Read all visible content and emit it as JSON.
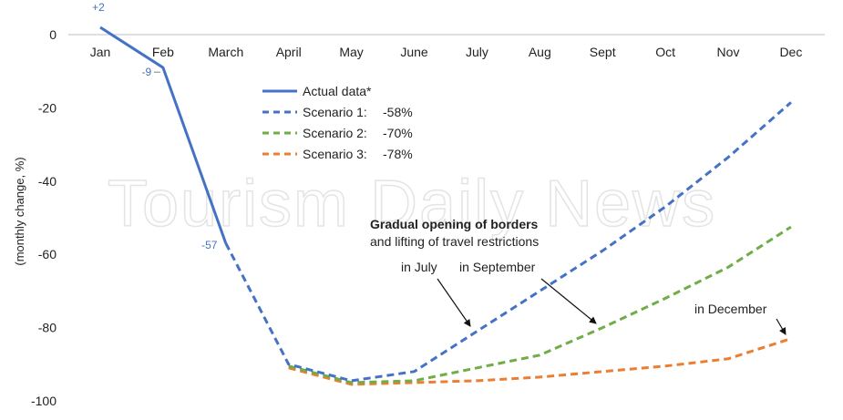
{
  "chart_data": {
    "type": "line",
    "categories": [
      "Jan",
      "Feb",
      "March",
      "April",
      "May",
      "June",
      "July",
      "Aug",
      "Sept",
      "Oct",
      "Nov",
      "Dec"
    ],
    "ylabel": "(monthly change, %)",
    "ylim": [
      -100,
      0
    ],
    "yticks": [
      0,
      -20,
      -40,
      -60,
      -80,
      -100
    ],
    "grid": false,
    "legend_position": "center-left",
    "series": [
      {
        "name": "Actual data*",
        "style": "solid",
        "color": "#4472c4",
        "values": [
          2,
          -9,
          -57,
          null,
          null,
          null,
          null,
          null,
          null,
          null,
          null,
          null
        ]
      },
      {
        "name": "Scenario 1:",
        "legend_value": "-58%",
        "style": "dashed",
        "color": "#4472c4",
        "values": [
          null,
          null,
          -57,
          -90,
          -94.5,
          -92,
          -81,
          -70,
          -59,
          -47,
          -33.5,
          -18.5
        ]
      },
      {
        "name": "Scenario 2:",
        "legend_value": "-70%",
        "style": "dashed",
        "color": "#70ad47",
        "values": [
          null,
          null,
          null,
          -90.5,
          -95,
          -94.5,
          -91,
          -87.5,
          -80,
          -72,
          -63.5,
          -52.5
        ]
      },
      {
        "name": "Scenario 3:",
        "legend_value": "-78%",
        "style": "dashed",
        "color": "#ed7d31",
        "values": [
          null,
          null,
          null,
          -91,
          -95.5,
          -95,
          -94.5,
          -93.5,
          -92,
          -90.5,
          -88.5,
          -83
        ]
      }
    ],
    "data_labels": [
      {
        "text": "+2",
        "category": "Jan",
        "value": 2
      },
      {
        "text": "-9",
        "category": "Feb",
        "value": -9
      },
      {
        "text": "-57",
        "category": "March",
        "value": -57
      }
    ],
    "annotations": {
      "title_bold": "Gradual opening of borders",
      "subtitle": "and lifting of travel restrictions",
      "in_july": "in July",
      "in_september": "in September",
      "in_december": "in December"
    },
    "watermark": "Tourism Daily News"
  }
}
